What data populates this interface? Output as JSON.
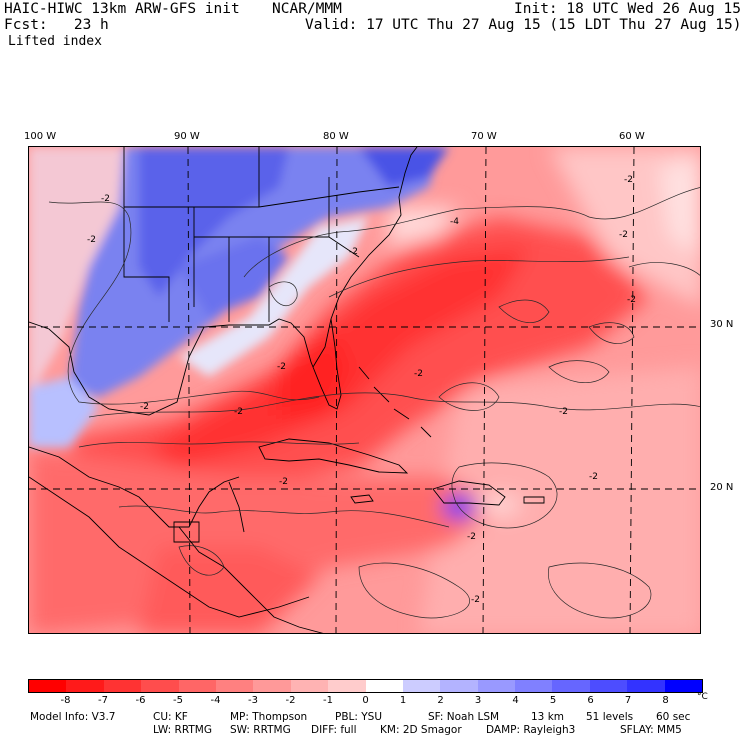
{
  "header": {
    "model": "HAIC-HIWC 13km ARW-GFS init",
    "org": "NCAR/MMM",
    "init": "Init: 18 UTC Wed 26 Aug 15",
    "fcst": "Fcst:   23 h",
    "valid": "Valid: 17 UTC Thu 27 Aug 15 (15 LDT Thu 27 Aug 15)",
    "field": "Lifted index"
  },
  "axes": {
    "lon_labels": [
      "100 W",
      "90 W",
      "80 W",
      "70 W",
      "60 W"
    ],
    "lat_labels": [
      "30 N",
      "20 N"
    ]
  },
  "contour_labels": [
    "-2",
    "-2",
    "-2",
    "-2",
    "-2",
    "-2",
    "-2",
    "-2",
    "-4",
    "-2",
    "-2",
    "-2",
    "-2",
    "-2",
    "-2",
    "-2"
  ],
  "colorbar": {
    "ticks": [
      "-8",
      "-7",
      "-6",
      "-5",
      "-4",
      "-3",
      "-2",
      "-1",
      "0",
      "1",
      "2",
      "3",
      "4",
      "5",
      "6",
      "7",
      "8"
    ],
    "unit": "°C",
    "colors": [
      "#ff0000",
      "#ff1a1a",
      "#ff3333",
      "#ff4d4d",
      "#ff6666",
      "#ff8080",
      "#ff9999",
      "#ffb3b3",
      "#ffcccc",
      "#ffffff",
      "#ccccff",
      "#b3b3ff",
      "#9999ff",
      "#8080ff",
      "#6666ff",
      "#4d4dff",
      "#3333ff",
      "#0000ff"
    ]
  },
  "footer": {
    "line1": [
      "Model Info: V3.7",
      "CU: KF",
      "MP: Thompson",
      "PBL: YSU",
      "SF: Noah LSM",
      "13 km",
      "51 levels",
      "60 sec"
    ],
    "line2": [
      "LW: RRTMG",
      "SW: RRTMG",
      "DIFF: full",
      "KM: 2D Smagor",
      "DAMP: Rayleigh3",
      "SFLAY: MM5"
    ]
  }
}
